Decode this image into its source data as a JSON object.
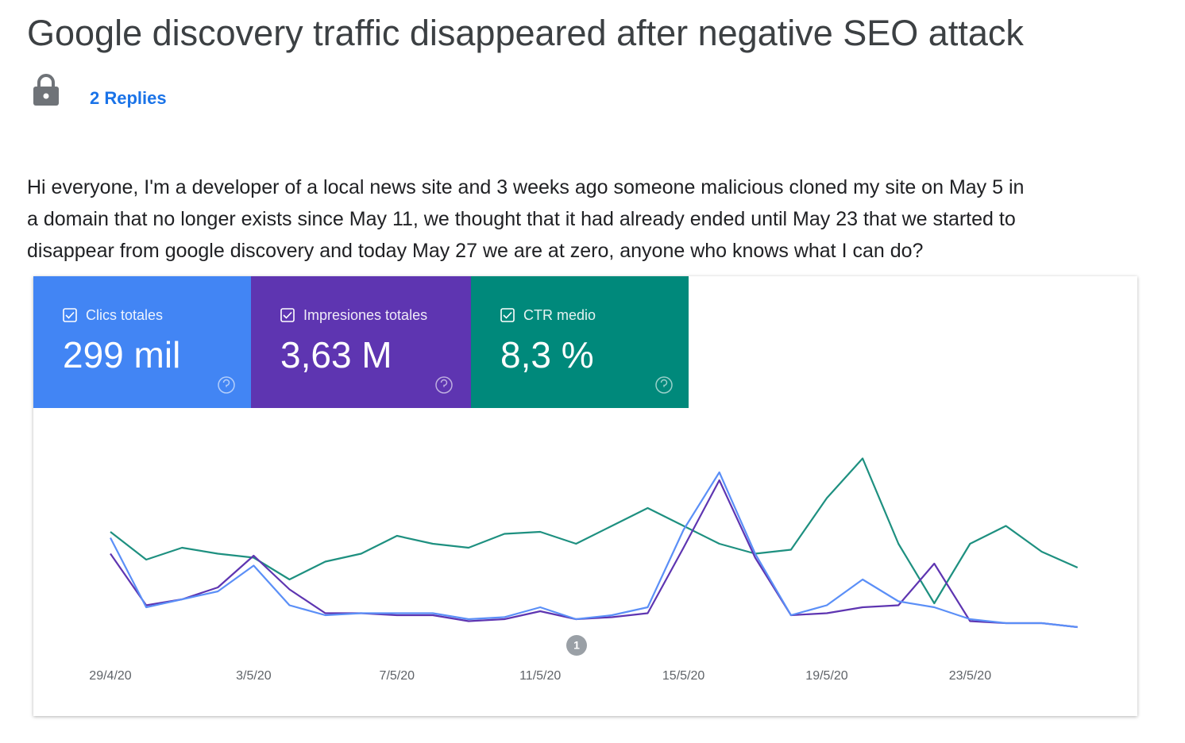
{
  "post": {
    "title": "Google discovery traffic disappeared after negative SEO attack",
    "replies": "2 Replies",
    "body": [
      "Hi everyone, I'm a developer of a local news site and 3 weeks ago someone malicious cloned my site on May 5 in",
      "a domain that no longer exists since May 11, we thought that it had already ended until May 23 that we started to",
      "disappear from google discovery and today May 27 we are at zero, anyone who knows what I can do?"
    ]
  },
  "chart_data": {
    "type": "line",
    "categories": [
      "29/4/20",
      null,
      null,
      null,
      "3/5/20",
      null,
      null,
      null,
      "7/5/20",
      null,
      null,
      null,
      "11/5/20",
      null,
      null,
      null,
      "15/5/20",
      null,
      null,
      null,
      "19/5/20",
      null,
      null,
      null,
      "23/5/20",
      null,
      null,
      null
    ],
    "ylim": [
      0,
      100
    ],
    "annotations": [
      {
        "text": "1"
      }
    ],
    "series": [
      {
        "name": "Clics totales",
        "total": "299 mil",
        "color": "#4285f4",
        "line_color": "#5b8ff7",
        "values": [
          57,
          22,
          26,
          30,
          43,
          23,
          18,
          19,
          19,
          19,
          16,
          17,
          22,
          16,
          18,
          22,
          61,
          90,
          49,
          18,
          23,
          36,
          25,
          22,
          16,
          14,
          14,
          12
        ]
      },
      {
        "name": "Impresiones totales",
        "total": "3,63 M",
        "color": "#5e35b1",
        "line_color": "#5e35b1",
        "values": [
          49,
          23,
          26,
          32,
          48,
          31,
          19,
          19,
          18,
          18,
          15,
          16,
          20,
          16,
          17,
          19,
          52,
          86,
          47,
          18,
          19,
          22,
          23,
          44,
          15,
          14,
          14,
          12
        ]
      },
      {
        "name": "CTR medio",
        "total": "8,3 %",
        "color": "#00897b",
        "line_color": "#1e9080",
        "values": [
          60,
          46,
          52,
          49,
          47,
          36,
          45,
          49,
          58,
          54,
          52,
          59,
          60,
          54,
          63,
          72,
          63,
          54,
          49,
          51,
          77,
          97,
          54,
          24,
          54,
          63,
          50,
          42
        ]
      }
    ]
  }
}
